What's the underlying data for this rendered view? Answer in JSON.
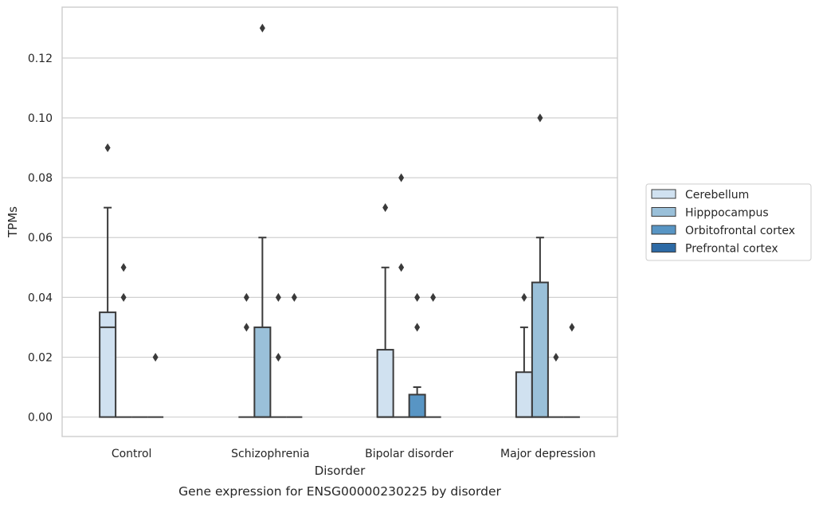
{
  "chart_data": {
    "type": "box",
    "xlabel": "Disorder",
    "ylabel": "TPMs",
    "caption": "Gene expression for ENSG00000230225 by disorder",
    "categories": [
      "Control",
      "Schizophrenia",
      "Bipolar disorder",
      "Major depression"
    ],
    "ylim": [
      -0.0065,
      0.137
    ],
    "yticks": [
      "0.00",
      "0.02",
      "0.04",
      "0.06",
      "0.08",
      "0.10",
      "0.12"
    ],
    "grid": "horizontal",
    "legend_position": "right",
    "series": [
      {
        "name": "Cerebellum",
        "color": "#d0e1f0",
        "boxes": [
          {
            "q1": 0,
            "median": 0.03,
            "q3": 0.035,
            "whislo": 0,
            "whishi": 0.07,
            "fliers": [
              0.09
            ]
          },
          {
            "q1": 0,
            "median": 0,
            "q3": 0,
            "whislo": 0,
            "whishi": 0,
            "fliers": [
              0.03,
              0.04
            ]
          },
          {
            "q1": 0,
            "median": 0,
            "q3": 0.0225,
            "whislo": 0,
            "whishi": 0.05,
            "fliers": [
              0.07
            ]
          },
          {
            "q1": 0,
            "median": 0,
            "q3": 0.015,
            "whislo": 0,
            "whishi": 0.03,
            "fliers": [
              0.04
            ]
          }
        ]
      },
      {
        "name": "Hipppocampus",
        "color": "#9ac0d9",
        "boxes": [
          {
            "q1": 0,
            "median": 0,
            "q3": 0,
            "whislo": 0,
            "whishi": 0,
            "fliers": [
              0.04,
              0.05
            ]
          },
          {
            "q1": 0,
            "median": 0,
            "q3": 0.03,
            "whislo": 0,
            "whishi": 0.06,
            "fliers": [
              0.13
            ]
          },
          {
            "q1": 0,
            "median": 0,
            "q3": 0,
            "whislo": 0,
            "whishi": 0,
            "fliers": [
              0.05,
              0.08
            ]
          },
          {
            "q1": 0,
            "median": 0,
            "q3": 0.045,
            "whislo": 0,
            "whishi": 0.06,
            "fliers": [
              0.1
            ]
          }
        ]
      },
      {
        "name": "Orbitofrontal cortex",
        "color": "#5895c4",
        "boxes": [
          {
            "q1": 0,
            "median": 0,
            "q3": 0,
            "whislo": 0,
            "whishi": 0,
            "fliers": []
          },
          {
            "q1": 0,
            "median": 0,
            "q3": 0,
            "whislo": 0,
            "whishi": 0,
            "fliers": [
              0.02,
              0.04
            ]
          },
          {
            "q1": 0,
            "median": 0,
            "q3": 0.0075,
            "whislo": 0,
            "whishi": 0.01,
            "fliers": [
              0.03,
              0.04
            ]
          },
          {
            "q1": 0,
            "median": 0,
            "q3": 0,
            "whislo": 0,
            "whishi": 0,
            "fliers": [
              0.02
            ]
          }
        ]
      },
      {
        "name": "Prefrontal cortex",
        "color": "#2d6aa5",
        "boxes": [
          {
            "q1": 0,
            "median": 0,
            "q3": 0,
            "whislo": 0,
            "whishi": 0,
            "fliers": [
              0.02
            ]
          },
          {
            "q1": 0,
            "median": 0,
            "q3": 0,
            "whislo": 0,
            "whishi": 0,
            "fliers": [
              0.04
            ]
          },
          {
            "q1": 0,
            "median": 0,
            "q3": 0,
            "whislo": 0,
            "whishi": 0,
            "fliers": [
              0.04
            ]
          },
          {
            "q1": 0,
            "median": 0,
            "q3": 0,
            "whislo": 0,
            "whishi": 0,
            "fliers": [
              0.03
            ]
          }
        ]
      }
    ]
  }
}
